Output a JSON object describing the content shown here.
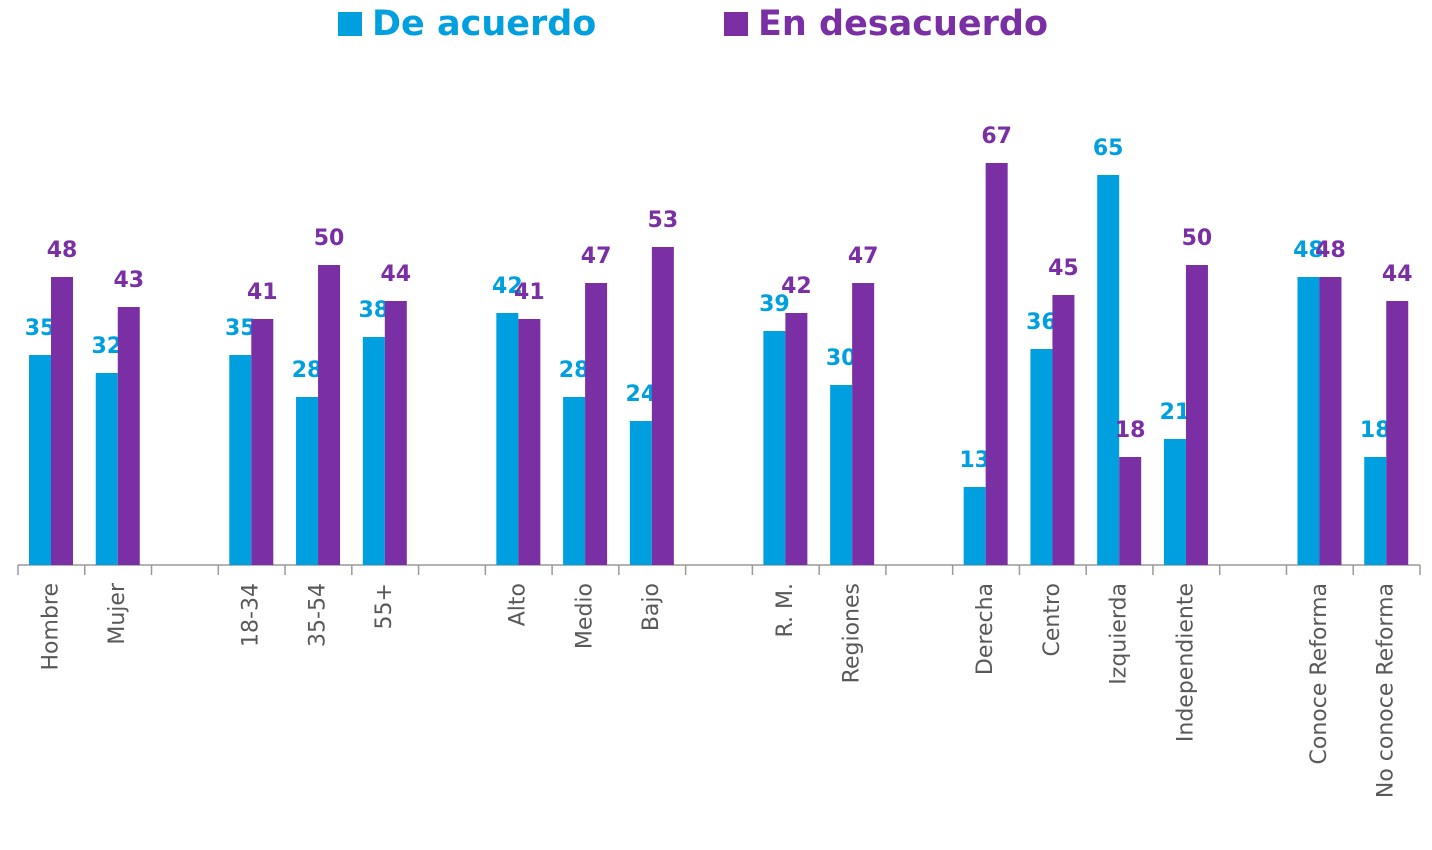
{
  "chart_data": {
    "type": "bar",
    "categories": [
      "Hombre",
      "Mujer",
      null,
      "18-34",
      "35-54",
      "55+",
      null,
      "Alto",
      "Medio",
      "Bajo",
      null,
      "R. M.",
      "Regiones",
      null,
      "Derecha",
      "Centro",
      "Izquierda",
      "Independiente",
      null,
      "Conoce Reforma",
      "No conoce Reforma"
    ],
    "series": [
      {
        "name": "De acuerdo",
        "color": "#009fe0",
        "values": [
          35,
          32,
          null,
          35,
          28,
          38,
          null,
          42,
          28,
          24,
          null,
          39,
          30,
          null,
          13,
          36,
          65,
          21,
          null,
          48,
          18
        ]
      },
      {
        "name": "En desacuerdo",
        "color": "#7b2fa5",
        "values": [
          48,
          43,
          null,
          41,
          50,
          44,
          null,
          41,
          47,
          53,
          null,
          42,
          47,
          null,
          67,
          45,
          18,
          50,
          null,
          48,
          44
        ]
      }
    ],
    "legend": "top"
  }
}
